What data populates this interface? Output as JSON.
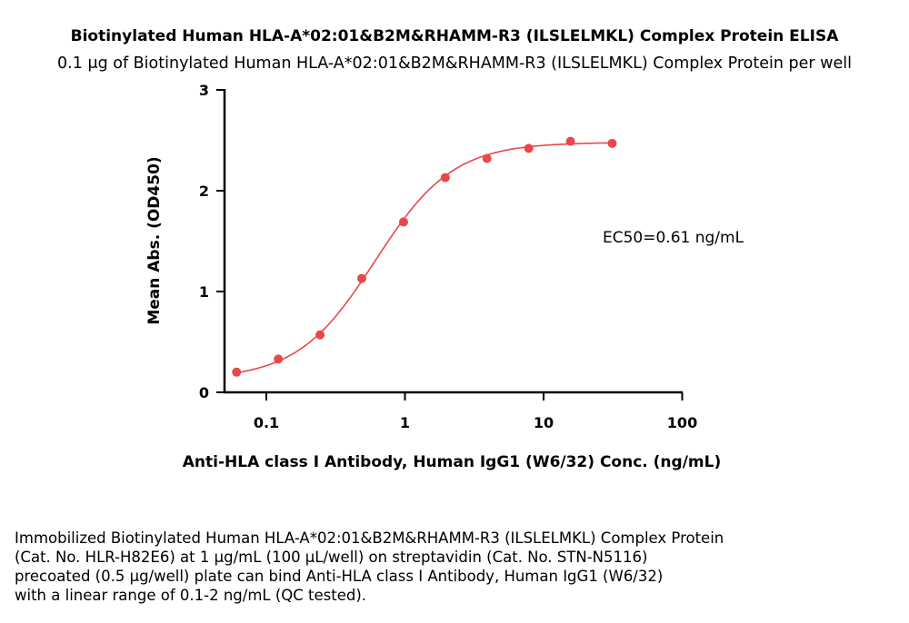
{
  "chart_data": {
    "type": "scatter",
    "title": "Biotinylated Human HLA-A*02:01&B2M&RHAMM-R3 (ILSLELMKL) Complex Protein ELISA",
    "subtitle": "0.1 μg of Biotinylated Human HLA-A*02:01&B2M&RHAMM-R3 (ILSLELMKL) Complex Protein per well",
    "xlabel": "Anti-HLA class I Antibody, Human IgG1 (W6/32) Conc. (ng/mL)",
    "ylabel": "Mean Abs. (OD450)",
    "xscale": "log",
    "xlim": [
      0.05,
      100
    ],
    "ylim": [
      0,
      3
    ],
    "x_ticks": [
      0.1,
      1,
      10,
      100
    ],
    "x_tick_labels": [
      "0.1",
      "1",
      "10",
      "100"
    ],
    "y_ticks": [
      0,
      1,
      2,
      3
    ],
    "y_tick_labels": [
      "0",
      "1",
      "2",
      "3"
    ],
    "grid": false,
    "legend": "none",
    "series_color": "#e8474b",
    "fit": "four-parameter logistic curve",
    "fit_params": {
      "bottom": 0.13,
      "top": 2.48,
      "ec50": 0.61,
      "hill": 1.55
    },
    "series": [
      {
        "x": [
          0.061,
          0.122,
          0.244,
          0.488,
          0.977,
          1.953,
          3.906,
          7.813,
          15.625,
          31.25
        ],
        "y": [
          0.2,
          0.33,
          0.57,
          1.13,
          1.69,
          2.13,
          2.32,
          2.42,
          2.49,
          2.47
        ]
      }
    ],
    "annotations": [
      "EC50=0.61 ng/mL"
    ]
  },
  "caption_lines": [
    "Immobilized Biotinylated Human HLA-A*02:01&B2M&RHAMM-R3 (ILSLELMKL) Complex Protein",
    "(Cat. No. HLR-H82E6) at 1 μg/mL (100 μL/well) on streptavidin (Cat. No. STN-N5116)",
    "precoated (0.5 μg/well) plate can bind Anti-HLA class I Antibody, Human IgG1 (W6/32)",
    "with a linear range of 0.1-2 ng/mL (QC tested)."
  ]
}
